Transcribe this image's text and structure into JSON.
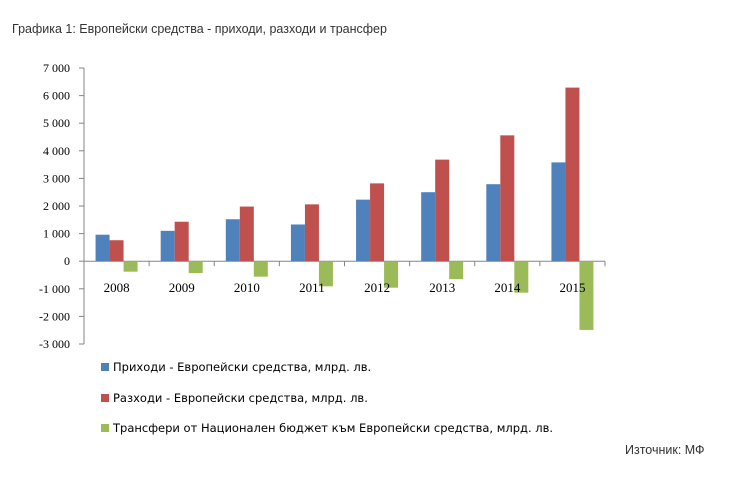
{
  "title": "Графика 1: Европейски средства - приходи, разходи и трансфер",
  "source": "Източник: МФ",
  "chart_data": {
    "type": "bar",
    "categories": [
      "2008",
      "2009",
      "2010",
      "2011",
      "2012",
      "2013",
      "2014",
      "2015"
    ],
    "series": [
      {
        "name": "Приходи - Европейски средства, млрд. лв.",
        "color": "#4f81bd",
        "values": [
          960,
          1100,
          1520,
          1330,
          2230,
          2500,
          2790,
          3580
        ]
      },
      {
        "name": "Разходи - Европейски средства, млрд. лв.",
        "color": "#c0504d",
        "values": [
          760,
          1430,
          1980,
          2060,
          2820,
          3680,
          4560,
          6290
        ]
      },
      {
        "name": "Трансфери от Национален бюджет към Европейски средства, млрд. лв.",
        "color": "#9bbb59",
        "values": [
          -380,
          -430,
          -560,
          -910,
          -960,
          -650,
          -1140,
          -2490
        ]
      }
    ],
    "ylim": [
      -3000,
      7000
    ],
    "yticks": [
      7000,
      6000,
      5000,
      4000,
      3000,
      2000,
      1000,
      0,
      -1000,
      -2000,
      -3000
    ],
    "ytick_labels": [
      "7 000",
      "6 000",
      "5 000",
      "4 000",
      "3 000",
      "2 000",
      "1 000",
      "0",
      "-1 000",
      "-2 000",
      "-3 000"
    ],
    "grid": false,
    "legend_position": "bottom",
    "xlabel": "",
    "ylabel": ""
  }
}
